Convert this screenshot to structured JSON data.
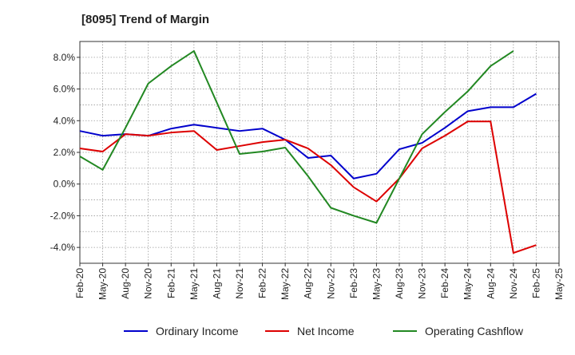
{
  "chart_data": {
    "type": "line",
    "title": "[8095]  Trend of Margin",
    "xlabel": "",
    "ylabel": "",
    "ylim": [
      -5.0,
      9.0
    ],
    "yticks": [
      -4.0,
      -2.0,
      0.0,
      2.0,
      4.0,
      6.0,
      8.0
    ],
    "ytick_labels": [
      "-4.0%",
      "-2.0%",
      "0.0%",
      "2.0%",
      "4.0%",
      "6.0%",
      "8.0%"
    ],
    "x": [
      "Feb-20",
      "May-20",
      "Aug-20",
      "Nov-20",
      "Feb-21",
      "May-21",
      "Aug-21",
      "Nov-21",
      "Feb-22",
      "May-22",
      "Aug-22",
      "Nov-22",
      "Feb-23",
      "May-23",
      "Aug-23",
      "Nov-23",
      "Feb-24",
      "May-24",
      "Aug-24",
      "Nov-24",
      "Feb-25",
      "May-25"
    ],
    "grid": true,
    "legend_position": "bottom",
    "series": [
      {
        "name": "Ordinary Income",
        "color": "#0000cc",
        "values": [
          3.35,
          3.05,
          3.15,
          3.05,
          3.5,
          3.75,
          3.55,
          3.35,
          3.5,
          2.8,
          1.65,
          1.8,
          0.35,
          0.65,
          2.2,
          2.6,
          3.55,
          4.6,
          4.85,
          4.85,
          5.7,
          null
        ]
      },
      {
        "name": "Net Income",
        "color": "#dd0000",
        "values": [
          2.25,
          2.05,
          3.15,
          3.05,
          3.25,
          3.35,
          2.15,
          2.4,
          2.65,
          2.8,
          2.25,
          1.2,
          -0.2,
          -1.1,
          0.35,
          2.25,
          3.05,
          3.95,
          3.95,
          -4.35,
          -3.85,
          null
        ]
      },
      {
        "name": "Operating Cashflow",
        "color": "#228822",
        "values": [
          1.75,
          0.9,
          3.55,
          6.35,
          7.45,
          8.4,
          5.15,
          1.9,
          2.05,
          2.3,
          0.5,
          -1.5,
          -2.0,
          -2.45,
          0.35,
          3.15,
          4.55,
          5.85,
          7.45,
          8.4,
          null,
          null
        ]
      }
    ]
  }
}
